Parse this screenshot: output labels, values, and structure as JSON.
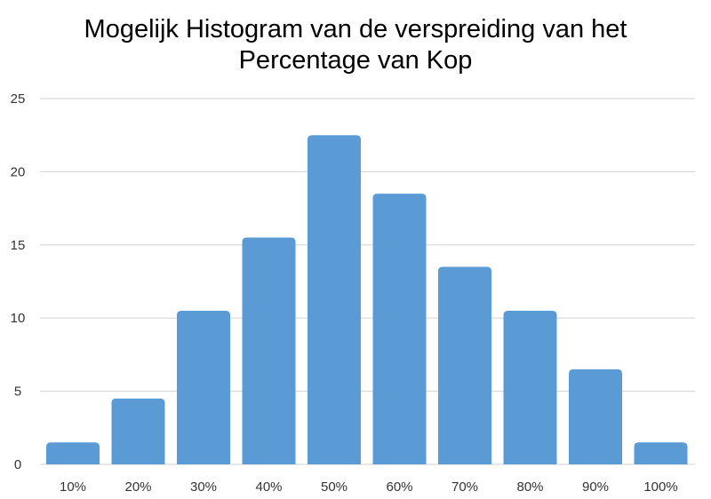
{
  "chart_data": {
    "type": "bar",
    "title_lines": [
      "Mogelijk Histogram van de verspreiding van het",
      "Percentage van Kop"
    ],
    "categories": [
      "10%",
      "20%",
      "30%",
      "40%",
      "50%",
      "60%",
      "70%",
      "80%",
      "90%",
      "100%"
    ],
    "values": [
      1.5,
      4.5,
      10.5,
      15.5,
      22.5,
      18.5,
      13.5,
      10.5,
      6.5,
      1.5
    ],
    "ylim": [
      0,
      25
    ],
    "yticks": [
      "0",
      "5",
      "10",
      "15",
      "20",
      "25"
    ],
    "grid": true,
    "legend": "none",
    "bar_color": "#5b9bd5",
    "grid_color": "#d9d9d9"
  }
}
